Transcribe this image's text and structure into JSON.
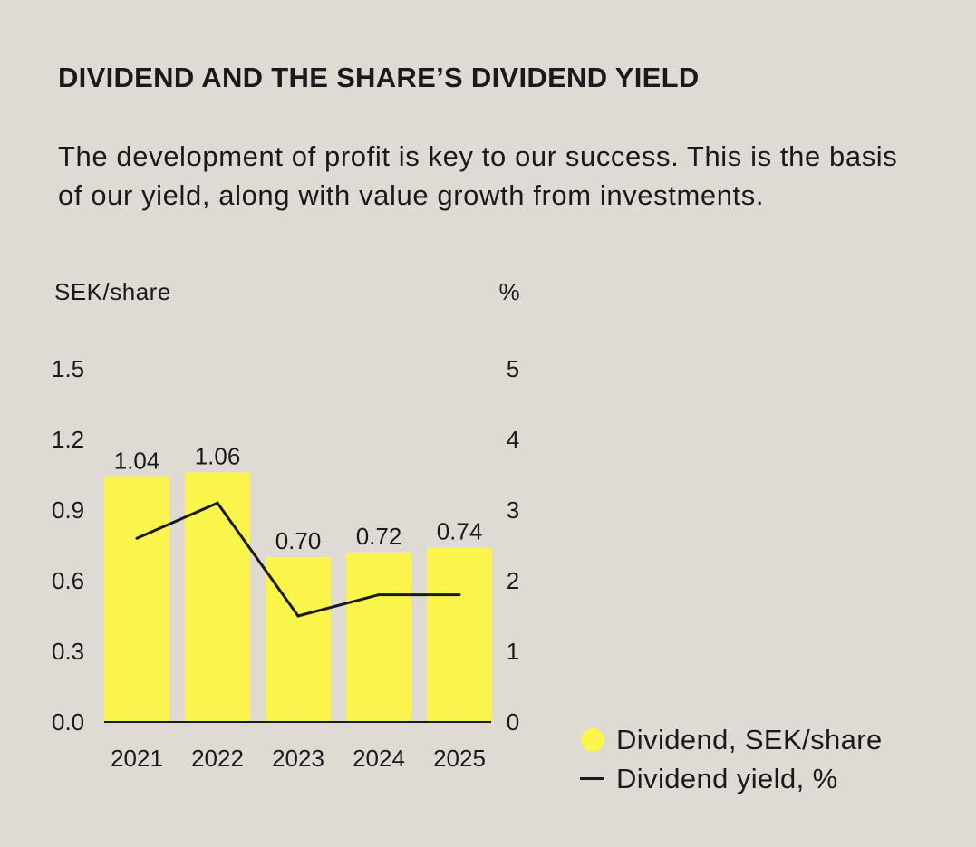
{
  "chart_data": {
    "type": "bar",
    "title": "DIVIDEND AND THE SHARE’S DIVIDEND YIELD",
    "subtitle": "The development of profit is key to our success. This is the basis of our yield, along with value growth from investments.",
    "categories": [
      "2021",
      "2022",
      "2023",
      "2024",
      "2025"
    ],
    "series": [
      {
        "name": "Dividend, SEK/share",
        "type": "bar",
        "axis": "left",
        "color": "#faf54a",
        "values": [
          1.04,
          1.06,
          0.7,
          0.72,
          0.74
        ],
        "labels": [
          "1.04",
          "1.06",
          "0.70",
          "0.72",
          "0.74"
        ]
      },
      {
        "name": "Dividend yield, %",
        "type": "line",
        "axis": "right",
        "color": "#1a1a1a",
        "values": [
          2.6,
          3.1,
          1.5,
          1.8,
          1.8
        ]
      }
    ],
    "ylabel_left": "SEK/share",
    "ylabel_right": "%",
    "ylim_left": [
      0,
      1.5
    ],
    "ylim_right": [
      0,
      5
    ],
    "yticks_left": [
      "0.0",
      "0.3",
      "0.6",
      "0.9",
      "1.2",
      "1.5"
    ],
    "yticks_right": [
      "0",
      "1",
      "2",
      "3",
      "4",
      "5"
    ],
    "grid": false,
    "legend_position": "bottom-right"
  }
}
